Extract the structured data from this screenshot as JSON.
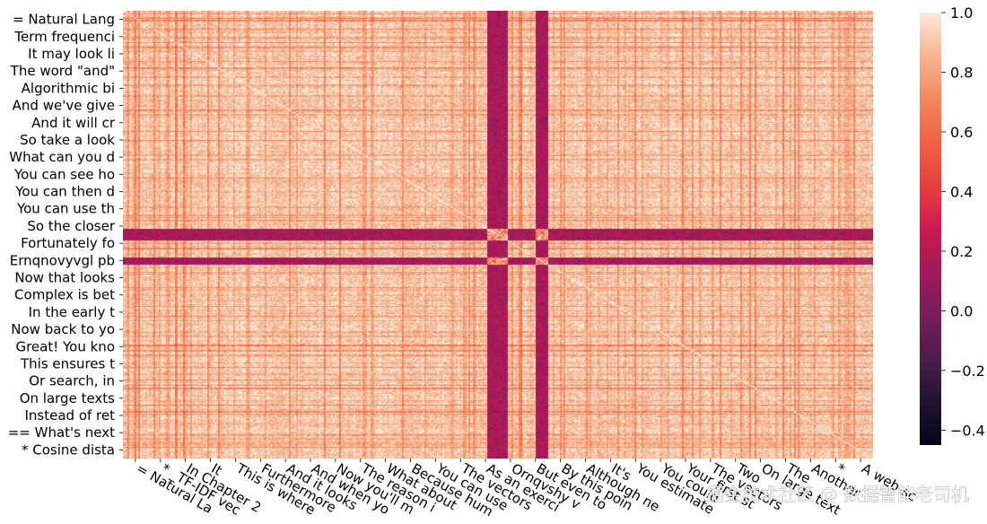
{
  "chart_data": {
    "type": "heatmap",
    "title": "",
    "xlabel": "",
    "ylabel": "",
    "y_tick_labels": [
      "= Natural Lang",
      "Term frequenci",
      "It may look li",
      "The word \"and\"",
      "Algorithmic bi",
      "And we've give",
      "And it will cr",
      "So take a look",
      "What can you d",
      "You can see ho",
      "You can then d",
      "You can use th",
      "So the closer ",
      "Fortunately fo",
      "Ernqnovyvgl pb",
      "Now that looks",
      "Complex is bet",
      "In the early t",
      "Now back to yo",
      "Great! You kno",
      "This ensures t",
      "Or search, in ",
      "On large texts",
      "Instead of ret",
      "== What's next",
      "* Cosine dista"
    ],
    "x_tick_labels": [
      "= Natural La",
      "* _TF-IDF vec",
      "In Chapter 2",
      "It",
      "This is where",
      "Furthermore",
      "And it looks",
      "And when yo",
      "Now you'll m",
      "The reason i",
      "What about",
      "Because hum",
      "You can use",
      "The vectors",
      "As an exerci",
      "Ornqvshy v",
      "But even to",
      "By this poin",
      "Although ne",
      "It's",
      "You estimate",
      "You could",
      "Your first st",
      "The vectors",
      "Two",
      "On large text",
      "The",
      "Another",
      "*",
      "A web-sc"
    ],
    "colorbar": {
      "min": -0.45,
      "max": 1.0,
      "ticks": [
        "-0.4",
        "-0.2",
        "0.0",
        "0.2",
        "0.4",
        "0.6",
        "0.8",
        "1.0"
      ],
      "colormap": "rocket"
    },
    "matrix_size": 404,
    "diagonal_value": 1.0,
    "typical_similarity_range": [
      0.35,
      0.95
    ],
    "outlier_band_rows": [
      "Ernqnovyvgl pb"
    ],
    "outlier_band_columns": [
      "Ornqvshy v"
    ],
    "outlier_band_value_range": [
      0.05,
      0.25
    ],
    "grid": false,
    "legend": "colorbar-right"
  },
  "watermark": {
    "text": "掘金技术社区 @ 数据智能老司机"
  }
}
